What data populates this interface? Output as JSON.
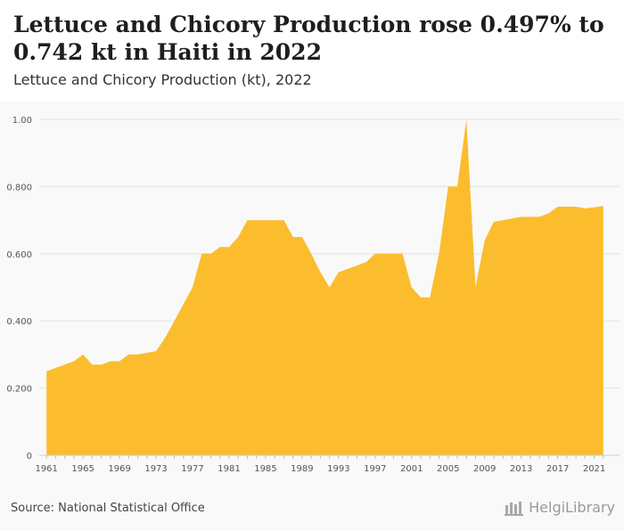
{
  "header": {
    "title": "Lettuce and Chicory Production rose 0.497% to 0.742 kt in Haiti in 2022",
    "subtitle": "Lettuce and Chicory Production (kt), 2022"
  },
  "footer": {
    "source": "Source: National Statistical Office",
    "brand_name": "HelgiLibrary"
  },
  "colors": {
    "area_fill": "#fbbd2d",
    "grid": "#e2e2e2",
    "axis_text": "#555555"
  },
  "chart_data": {
    "type": "area",
    "title": "Lettuce and Chicory Production (kt), 2022",
    "xlabel": "",
    "ylabel": "",
    "ylim": [
      0,
      1.0
    ],
    "yticks": [
      "0",
      "0.200",
      "0.400",
      "0.600",
      "0.800",
      "1.00"
    ],
    "xticks": [
      "1961",
      "1965",
      "1969",
      "1973",
      "1977",
      "1981",
      "1985",
      "1989",
      "1993",
      "1997",
      "2001",
      "2005",
      "2009",
      "2013",
      "2017",
      "2021"
    ],
    "grid": true,
    "series": [
      {
        "x": [
          1961,
          1962,
          1963,
          1964,
          1965,
          1966,
          1967,
          1968,
          1969,
          1970,
          1971,
          1972,
          1973,
          1974,
          1975,
          1976,
          1977,
          1978,
          1979,
          1980,
          1981,
          1982,
          1983,
          1984,
          1985,
          1986,
          1987,
          1988,
          1989,
          1990,
          1991,
          1992,
          1993,
          1994,
          1995,
          1996,
          1997,
          1998,
          1999,
          2000,
          2001,
          2002,
          2003,
          2004,
          2005,
          2006,
          2007,
          2008,
          2009,
          2010,
          2011,
          2012,
          2013,
          2014,
          2015,
          2016,
          2017,
          2018,
          2019,
          2020,
          2021,
          2022
        ],
        "values": [
          0.25,
          0.26,
          0.27,
          0.28,
          0.3,
          0.27,
          0.27,
          0.28,
          0.28,
          0.3,
          0.3,
          0.305,
          0.31,
          0.35,
          0.4,
          0.45,
          0.5,
          0.6,
          0.6,
          0.62,
          0.62,
          0.65,
          0.7,
          0.7,
          0.7,
          0.7,
          0.7,
          0.65,
          0.65,
          0.6,
          0.545,
          0.5,
          0.545,
          0.555,
          0.565,
          0.575,
          0.6,
          0.6,
          0.6,
          0.6,
          0.5,
          0.47,
          0.47,
          0.6,
          0.8,
          0.8,
          1.0,
          0.5,
          0.64,
          0.695,
          0.7,
          0.705,
          0.71,
          0.71,
          0.71,
          0.72,
          0.74,
          0.74,
          0.74,
          0.735,
          0.738,
          0.742
        ]
      }
    ]
  }
}
